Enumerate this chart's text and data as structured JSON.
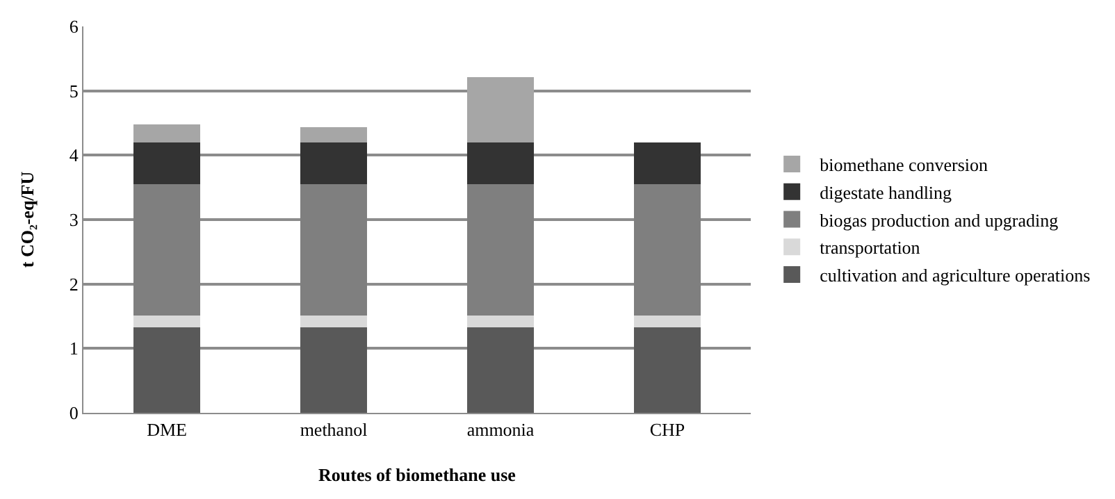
{
  "chart_data": {
    "type": "bar",
    "stacked": true,
    "xlabel": "Routes of biomethane use",
    "ylabel": "t CO₂-eq/FU",
    "categories": [
      "DME",
      "methanol",
      "ammonia",
      "CHP"
    ],
    "series": [
      {
        "name": "cultivation and agriculture operations",
        "color": "#595959",
        "values": [
          1.33,
          1.33,
          1.33,
          1.33
        ]
      },
      {
        "name": "transportation",
        "color": "#d9d9d9",
        "values": [
          0.18,
          0.18,
          0.18,
          0.18
        ]
      },
      {
        "name": "biogas production and upgrading",
        "color": "#7f7f7f",
        "values": [
          2.04,
          2.04,
          2.04,
          2.04
        ]
      },
      {
        "name": "digestate handling",
        "color": "#333333",
        "values": [
          0.65,
          0.65,
          0.65,
          0.65
        ]
      },
      {
        "name": "biomethane conversion",
        "color": "#a6a6a6",
        "values": [
          0.28,
          0.23,
          1.01,
          0
        ]
      }
    ],
    "ylim": [
      0,
      6
    ],
    "yticks": [
      0,
      1,
      2,
      3,
      4,
      5,
      6
    ],
    "grid": "y",
    "legend": "right"
  }
}
